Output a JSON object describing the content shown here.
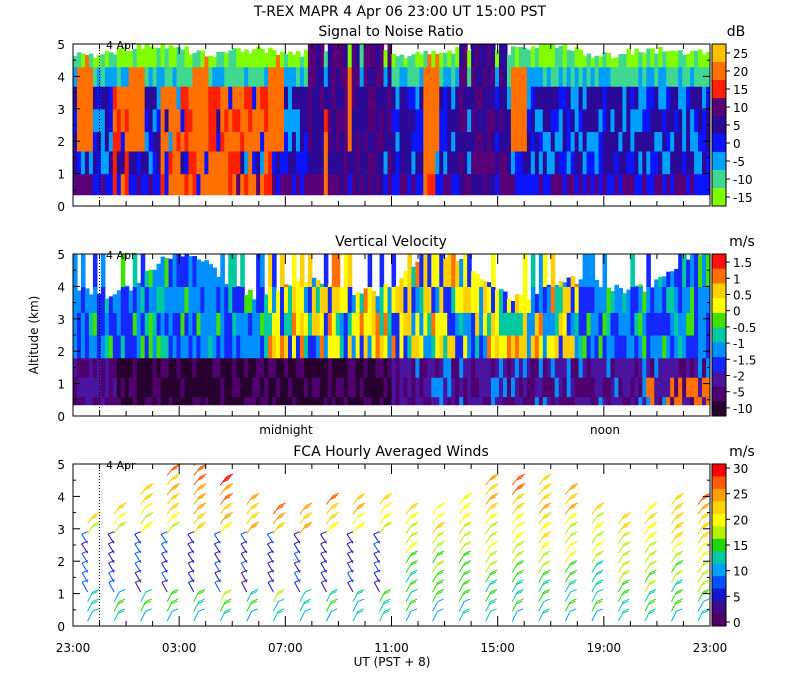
{
  "figure_title": "T-REX  MAPR  4 Apr 06  23:00 UT  15:00  PST",
  "y_axis_label": "Altitude (km)",
  "x_axis_label": "UT  (PST + 8)",
  "day_marker_label": "4 Apr",
  "x_tick_labels": [
    "23:00",
    "03:00",
    "07:00",
    "11:00",
    "15:00",
    "19:00",
    "23:00"
  ],
  "y_tick_labels": [
    "0",
    "1",
    "2",
    "3",
    "4",
    "5"
  ],
  "period_labels": [
    "midnight",
    "noon"
  ],
  "chart_data": [
    {
      "type": "heatmap",
      "title": "Signal to Noise Ratio",
      "ylabel": "Altitude (km)",
      "ylim": [
        0,
        5
      ],
      "colorbar_unit": "dB",
      "colorbar_ticks": [
        "25",
        "20",
        "15",
        "10",
        "5",
        "0",
        "-5",
        "-10",
        "-15"
      ],
      "colors": [
        "#ffc000",
        "#ff7000",
        "#ff2000",
        "#580078",
        "#2a0a96",
        "#0a14ff",
        "#00a0ff",
        "#40d890",
        "#80ff00"
      ]
    },
    {
      "type": "heatmap",
      "title": "Vertical Velocity",
      "ylabel": "Altitude (km)",
      "ylim": [
        0,
        5
      ],
      "colorbar_unit": "m/s",
      "colorbar_ticks": [
        "1.5",
        "1",
        "0.5",
        "0",
        "-0.5",
        "-1",
        "-1.5",
        "-2",
        "-5",
        "-10"
      ],
      "colors": [
        "#ff1010",
        "#ff7000",
        "#ffd000",
        "#ffff00",
        "#40e000",
        "#00c8a0",
        "#0090ff",
        "#1428ff",
        "#4a14a0",
        "#50006e",
        "#280030"
      ]
    },
    {
      "type": "scatter",
      "title": "FCA Hourly Averaged Winds",
      "xlabel": "UT  (PST + 8)",
      "ylabel": "Altitude (km)",
      "ylim": [
        0,
        5
      ],
      "colorbar_unit": "m/s",
      "colorbar_ticks": [
        "30",
        "25",
        "20",
        "15",
        "10",
        "5",
        "0"
      ],
      "colors": [
        "#ff0000",
        "#ff5a00",
        "#ffa000",
        "#ffd200",
        "#ffff00",
        "#b4f000",
        "#20d800",
        "#00c8a0",
        "#00a0ff",
        "#0050ff",
        "#1414c8",
        "#3c0a8c",
        "#500064"
      ]
    }
  ]
}
